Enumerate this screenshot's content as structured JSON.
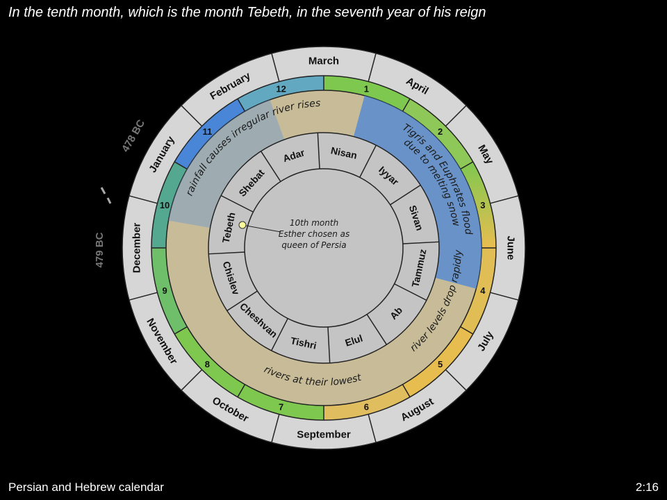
{
  "title": "In the tenth month, which is the month Tebeth, in the seventh year of his reign",
  "footer": {
    "left": "Persian and Hebrew calendar",
    "right": "2:16"
  },
  "gregorian_months": [
    "March",
    "April",
    "May",
    "June",
    "July",
    "August",
    "September",
    "October",
    "November",
    "December",
    "January",
    "February"
  ],
  "persian_month_numbers": [
    "1",
    "2",
    "3",
    "4",
    "5",
    "6",
    "7",
    "8",
    "9",
    "10",
    "11",
    "12"
  ],
  "hebrew_months": [
    "Nisan",
    "Iyyar",
    "Sivan",
    "Tammuz",
    "Ab",
    "Elul",
    "Tishri",
    "Cheshvan",
    "Chislev",
    "Tebeth",
    "Shebat",
    "Adar"
  ],
  "annotations": {
    "flood": [
      "Tigris and Euphrates flood",
      "due to melting snow"
    ],
    "drop": "river levels drop rapidly",
    "lowest": "rivers at their lowest",
    "rainfall": "rainfall causes irregular river rises"
  },
  "center_note": [
    "10th month",
    "Esther chosen as",
    "queen of Persia"
  ],
  "year_labels": {
    "before": "479 BC",
    "after": "478 BC"
  },
  "colors": {
    "green": "#7ec850",
    "yellow": "#e8bd50",
    "blue": "#4a86d8",
    "tan": "#c8bc98",
    "ring_gray": "#d6d6d6",
    "inner_gray": "#c4c4c4",
    "marker": "#fafa9a"
  }
}
